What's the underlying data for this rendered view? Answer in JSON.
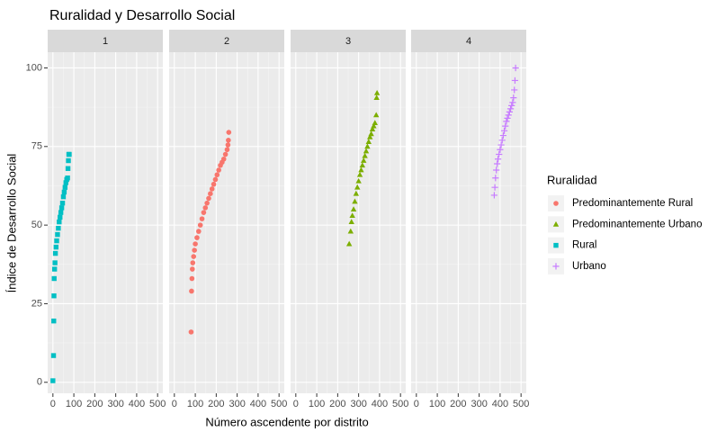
{
  "chart_data": {
    "type": "scatter",
    "title": "Ruralidad y Desarrollo Social",
    "xlabel": "Número ascendente por distrito",
    "ylabel": "Índice de Desarrollo Social",
    "legend_title": "Ruralidad",
    "legend_position": "right",
    "facets": [
      "1",
      "2",
      "3",
      "4"
    ],
    "xlim": [
      -25,
      525
    ],
    "xticks": [
      0,
      100,
      200,
      300,
      400,
      500
    ],
    "ylim": [
      -3.5,
      105
    ],
    "yticks": [
      0,
      25,
      50,
      75,
      100
    ],
    "grid": true,
    "series": [
      {
        "name": "Rural",
        "color": "#00BFC4",
        "shape": "square",
        "x": [
          0,
          3,
          4,
          5,
          6,
          8,
          10,
          12,
          15,
          18,
          22,
          26,
          30,
          34,
          38,
          42,
          46,
          50,
          54,
          58,
          62,
          66,
          70,
          72,
          74,
          76,
          78
        ],
        "values": [
          0.5,
          8.5,
          19.5,
          27.5,
          33,
          36,
          38,
          41,
          43,
          45,
          47,
          49,
          51,
          52.5,
          54,
          55.5,
          57,
          59,
          60.5,
          62,
          63.5,
          64.5,
          65,
          68,
          70.5,
          72.5,
          72.5
        ]
      },
      {
        "name": "Predominantemente Rural",
        "color": "#F8766D",
        "shape": "circle",
        "x": [
          80,
          82,
          84,
          86,
          88,
          92,
          96,
          100,
          108,
          116,
          124,
          132,
          140,
          148,
          156,
          164,
          172,
          180,
          188,
          196,
          204,
          212,
          220,
          228,
          236,
          244,
          252,
          256,
          258,
          260
        ],
        "values": [
          16,
          29,
          33,
          36,
          38,
          40,
          42,
          44,
          46,
          48,
          50,
          52,
          54,
          55.5,
          57,
          58.5,
          60,
          61.5,
          63,
          64.5,
          66,
          67.5,
          69,
          70,
          71,
          72.5,
          74,
          75.5,
          77,
          79.5
        ]
      },
      {
        "name": "Predominantemente Urbano",
        "color": "#7CAE00",
        "shape": "triangle",
        "x": [
          255,
          262,
          266,
          270,
          276,
          282,
          288,
          294,
          300,
          306,
          312,
          318,
          324,
          330,
          336,
          342,
          348,
          354,
          360,
          366,
          372,
          378,
          384,
          386,
          388
        ],
        "values": [
          44,
          48,
          51,
          53,
          55,
          57.5,
          60,
          62,
          64,
          66,
          67.5,
          69,
          70.5,
          72,
          73.5,
          75,
          76.5,
          78,
          79,
          80.5,
          81.5,
          82.5,
          85,
          90.5,
          92
        ]
      },
      {
        "name": "Urbano",
        "color": "#C77CFF",
        "shape": "plus",
        "x": [
          372,
          375,
          378,
          382,
          386,
          390,
          395,
          400,
          405,
          410,
          415,
          420,
          425,
          430,
          435,
          440,
          445,
          450,
          455,
          460,
          464,
          468,
          471,
          474
        ],
        "values": [
          59.5,
          62,
          65,
          67.5,
          69.5,
          71,
          72.5,
          74,
          75.5,
          77,
          78.5,
          80,
          81.5,
          83,
          84,
          85,
          86,
          87,
          88,
          89,
          90.5,
          93,
          96,
          100
        ]
      }
    ]
  }
}
